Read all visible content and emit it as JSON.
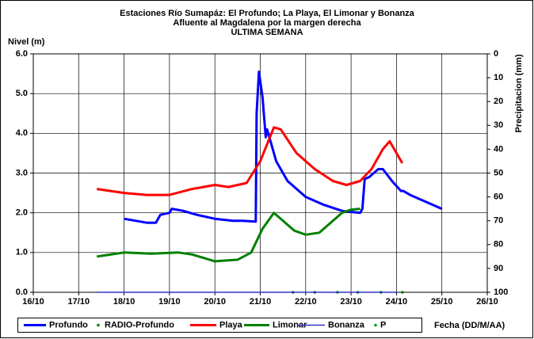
{
  "chart_data": {
    "type": "line",
    "title": [
      "Estaciones Río Sumapáz: El Profundo; La Playa, El Limonar y Bonanza",
      "Afluente al Magdalena por la margen derecha",
      "ULTIMA SEMANA"
    ],
    "y_label": "Nivel (m)",
    "y2_label": "Precipitacion (mm)",
    "x_label": "Fecha (DD/M/AA)",
    "xlim": [
      16,
      26
    ],
    "xticks": [
      {
        "value": 16,
        "label": "16/10"
      },
      {
        "value": 17,
        "label": "17/10"
      },
      {
        "value": 18,
        "label": "18/10"
      },
      {
        "value": 19,
        "label": "19/10"
      },
      {
        "value": 20,
        "label": "20/10"
      },
      {
        "value": 21,
        "label": "21/10"
      },
      {
        "value": 22,
        "label": "22/10"
      },
      {
        "value": 23,
        "label": "23/10"
      },
      {
        "value": 24,
        "label": "24/10"
      },
      {
        "value": 25,
        "label": "25/10"
      },
      {
        "value": 26,
        "label": "26/10"
      }
    ],
    "ylim": [
      0,
      6
    ],
    "yticks": [
      {
        "value": 0,
        "label": "0.0"
      },
      {
        "value": 1,
        "label": "1.0"
      },
      {
        "value": 2,
        "label": "2.0"
      },
      {
        "value": 3,
        "label": "3.0"
      },
      {
        "value": 4,
        "label": "4.0"
      },
      {
        "value": 5,
        "label": "5.0"
      },
      {
        "value": 6,
        "label": "6.0"
      }
    ],
    "y2lim": [
      100,
      0
    ],
    "y2ticks": [
      0,
      10,
      20,
      30,
      40,
      50,
      60,
      70,
      80,
      90,
      100
    ],
    "grid": true,
    "legend": "bottom",
    "series": [
      {
        "name": "Profundo",
        "color": "#0000ff",
        "style": "line",
        "thick": true,
        "x": [
          18.0,
          18.5,
          18.7,
          18.8,
          19.0,
          19.05,
          19.3,
          19.6,
          20.0,
          20.4,
          20.6,
          20.9,
          20.92,
          20.97,
          21.05,
          21.12,
          21.15,
          21.2,
          21.35,
          21.6,
          22.0,
          22.4,
          22.8,
          23.2,
          23.25,
          23.3,
          23.4,
          23.6,
          23.7,
          23.9,
          24.1,
          24.15,
          24.3,
          24.6,
          25.0
        ],
        "values": [
          1.85,
          1.75,
          1.75,
          1.95,
          2.0,
          2.1,
          2.05,
          1.95,
          1.85,
          1.8,
          1.8,
          1.78,
          4.5,
          5.55,
          4.9,
          3.9,
          4.1,
          3.9,
          3.3,
          2.8,
          2.4,
          2.2,
          2.05,
          2.0,
          2.1,
          2.85,
          2.9,
          3.1,
          3.1,
          2.8,
          2.55,
          2.55,
          2.45,
          2.3,
          2.1
        ]
      },
      {
        "name": "RADIO-Profundo",
        "color": "#008000",
        "style": "dots",
        "x": [
          21.72,
          22.2,
          22.7,
          23.15,
          23.66,
          24.13
        ],
        "values": [
          0,
          0,
          0,
          0,
          0,
          0
        ]
      },
      {
        "name": "Playa",
        "color": "#ff0000",
        "style": "line",
        "thick": true,
        "x": [
          17.4,
          18.0,
          18.5,
          19.0,
          19.5,
          20.0,
          20.3,
          20.7,
          21.0,
          21.3,
          21.45,
          21.8,
          22.2,
          22.6,
          22.9,
          23.2,
          23.45,
          23.7,
          23.85,
          24.13
        ],
        "values": [
          2.6,
          2.5,
          2.45,
          2.45,
          2.6,
          2.7,
          2.65,
          2.75,
          3.3,
          4.15,
          4.1,
          3.5,
          3.1,
          2.8,
          2.7,
          2.8,
          3.1,
          3.6,
          3.8,
          3.25
        ]
      },
      {
        "name": "Limonar",
        "color": "#008000",
        "style": "line",
        "thick": true,
        "x": [
          17.4,
          18.0,
          18.6,
          19.2,
          19.5,
          20.0,
          20.5,
          20.8,
          21.05,
          21.3,
          21.5,
          21.75,
          22.0,
          22.3,
          22.6,
          22.8,
          23.0,
          23.2
        ],
        "values": [
          0.9,
          1.0,
          0.97,
          1.0,
          0.95,
          0.78,
          0.82,
          1.0,
          1.6,
          2.0,
          1.8,
          1.55,
          1.45,
          1.5,
          1.8,
          2.0,
          2.08,
          2.1
        ]
      },
      {
        "name": "Bonanza",
        "color": "#3333cc",
        "style": "line",
        "thick": false,
        "x": [
          17.4,
          18.0,
          19.0,
          20.0,
          21.0,
          22.0,
          23.0,
          24.0
        ],
        "values": [
          0,
          0,
          0,
          0,
          0,
          0,
          0,
          0
        ]
      },
      {
        "name": "P",
        "color": "#00a000",
        "style": "dots",
        "axis": "y2",
        "x": [],
        "values": []
      }
    ]
  }
}
